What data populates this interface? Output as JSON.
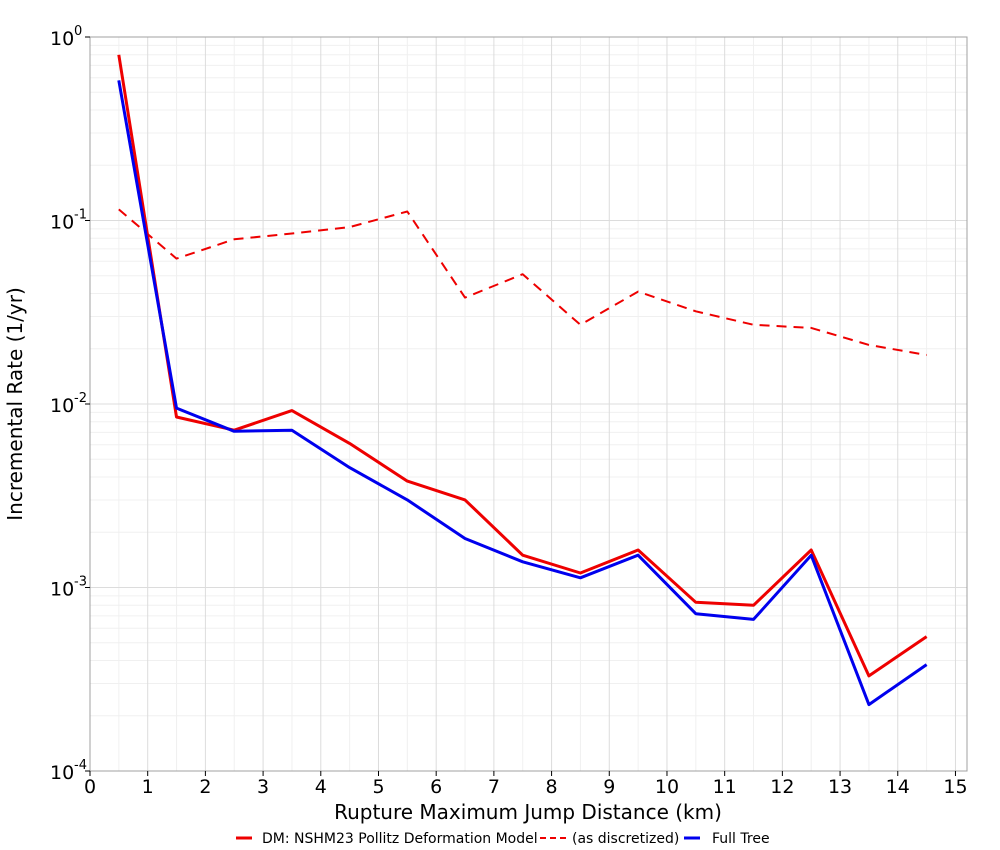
{
  "chart_data": {
    "type": "line",
    "title": "",
    "xlabel": "Rupture Maximum Jump Distance (km)",
    "ylabel": "Incremental Rate (1/yr)",
    "xlim": [
      0,
      15.2
    ],
    "ylim": [
      0.0001,
      1
    ],
    "yscale": "log",
    "grid": true,
    "legend_position": "bottom",
    "x_ticks": [
      0,
      1,
      2,
      3,
      4,
      5,
      6,
      7,
      8,
      9,
      10,
      11,
      12,
      13,
      14,
      15
    ],
    "x_tick_labels": [
      "0",
      "1",
      "2",
      "3",
      "4",
      "5",
      "6",
      "7",
      "8",
      "9",
      "10",
      "11",
      "12",
      "13",
      "14",
      "15"
    ],
    "y_ticks": [
      {
        "value": 1,
        "base": "10",
        "exp": "0"
      },
      {
        "value": 0.1,
        "base": "10",
        "exp": "-1"
      },
      {
        "value": 0.01,
        "base": "10",
        "exp": "-2"
      },
      {
        "value": 0.001,
        "base": "10",
        "exp": "-3"
      },
      {
        "value": 0.0001,
        "base": "10",
        "exp": "-4"
      }
    ],
    "x": [
      0.5,
      1.5,
      2.5,
      3.5,
      4.5,
      5.5,
      6.5,
      7.5,
      8.5,
      9.5,
      10.5,
      11.5,
      12.5,
      13.5,
      14.5
    ],
    "series": [
      {
        "name": "DM: NSHM23 Pollitz Deformation Model",
        "color": "#ee0000",
        "dash": "solid",
        "values": [
          0.8,
          0.0085,
          0.0072,
          0.0092,
          0.0061,
          0.0038,
          0.003,
          0.0015,
          0.0012,
          0.0016,
          0.00083,
          0.0008,
          0.0016,
          0.00033,
          0.00054
        ]
      },
      {
        "name": "(as discretized)",
        "color": "#ee0000",
        "dash": "dashed",
        "values": [
          0.115,
          0.062,
          0.079,
          0.085,
          0.092,
          0.112,
          0.038,
          0.051,
          0.027,
          0.041,
          0.032,
          0.027,
          0.026,
          0.021,
          0.0185
        ]
      },
      {
        "name": "Full Tree",
        "color": "#0000ee",
        "dash": "solid",
        "values": [
          0.58,
          0.0095,
          0.0071,
          0.0072,
          0.0045,
          0.003,
          0.00185,
          0.00138,
          0.00113,
          0.0015,
          0.00072,
          0.00067,
          0.0015,
          0.00023,
          0.00038
        ]
      }
    ]
  }
}
